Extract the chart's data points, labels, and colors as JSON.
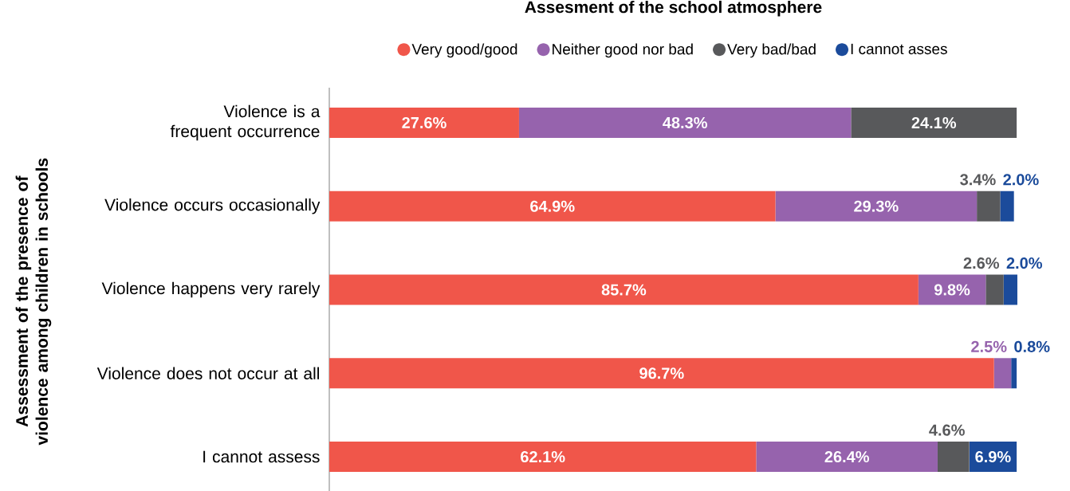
{
  "chart_data": {
    "type": "bar",
    "orientation": "horizontal",
    "stacked": true,
    "title": "Assesment of the school atmosphere",
    "ylabel": "Assessment of the presence of violence among children in schools",
    "legend": "top",
    "categories": [
      "Violence is a frequent occurrence",
      "Violence occurs occasionally",
      "Violence happens very rarely",
      "Violence does not occur at all",
      "I cannot assess"
    ],
    "series": [
      {
        "name": "Very good/good",
        "color": "#f0564a",
        "values": [
          27.6,
          64.9,
          85.7,
          96.7,
          62.1
        ],
        "value_labels": [
          "27.6%",
          "64.9%",
          "85.7%",
          "96.7%",
          "62.1%"
        ]
      },
      {
        "name": "Neither good nor bad",
        "color": "#9663ad",
        "values": [
          48.3,
          29.3,
          9.8,
          2.5,
          26.4
        ],
        "value_labels": [
          "48.3%",
          "29.3%",
          "9.8%",
          "2.5%",
          "26.4%"
        ]
      },
      {
        "name": "Very bad/bad",
        "color": "#58595b",
        "values": [
          24.1,
          3.4,
          2.6,
          null,
          4.6
        ],
        "value_labels": [
          "24.1%",
          "3.4%",
          "2.6%",
          null,
          "4.6%"
        ]
      },
      {
        "name": "I cannot asses",
        "color": "#1b4b9b",
        "values": [
          null,
          2.0,
          2.0,
          0.8,
          6.9
        ],
        "value_labels": [
          null,
          "2.0%",
          "2.0%",
          "0.8%",
          "6.9%"
        ]
      }
    ]
  }
}
